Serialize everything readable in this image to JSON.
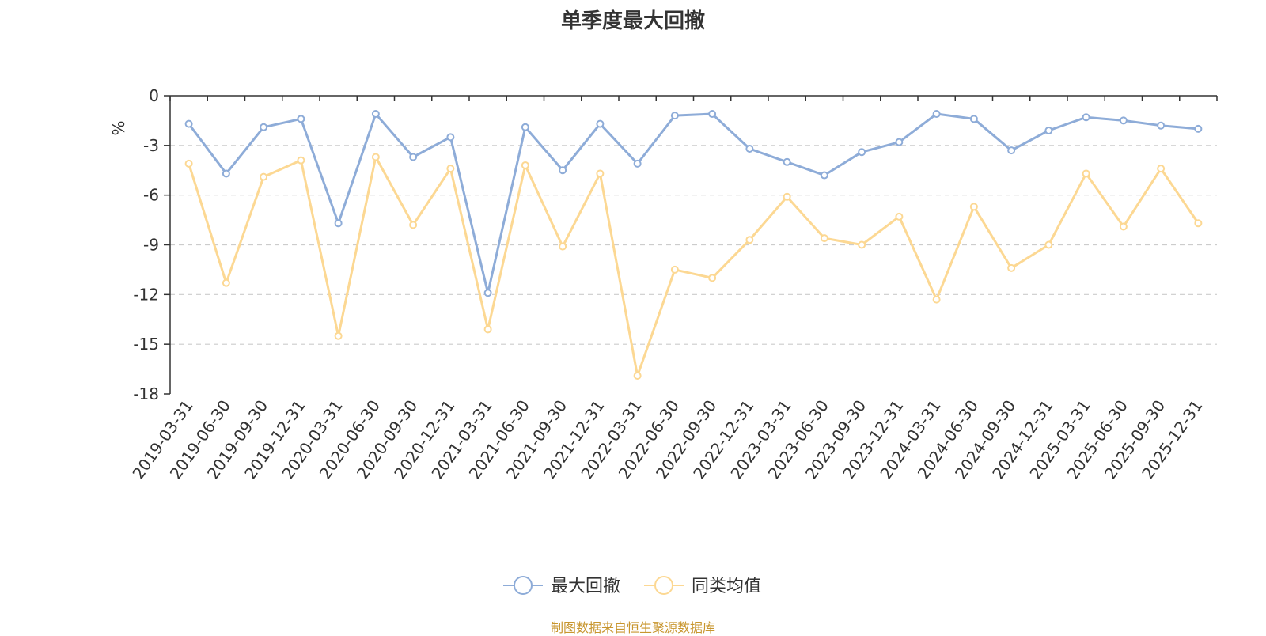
{
  "chart_data": {
    "type": "line",
    "title": "单季度最大回撤",
    "ylabel": "%",
    "ylim": [
      -18,
      0
    ],
    "yticks": [
      0,
      -3,
      -6,
      -9,
      -12,
      -15,
      -18
    ],
    "grid": true,
    "legend_position": "bottom-center",
    "categories": [
      "2019-03-31",
      "2019-06-30",
      "2019-09-30",
      "2019-12-31",
      "2020-03-31",
      "2020-06-30",
      "2020-09-30",
      "2020-12-31",
      "2021-03-31",
      "2021-06-30",
      "2021-09-30",
      "2021-12-31",
      "2022-03-31",
      "2022-06-30",
      "2022-09-30",
      "2022-12-31",
      "2023-03-31",
      "2023-06-30",
      "2023-09-30",
      "2023-12-31",
      "2024-03-31",
      "2024-06-30",
      "2024-09-30",
      "2024-12-31",
      "2025-03-31",
      "2025-06-30",
      "2025-09-30",
      "2025-12-31"
    ],
    "series": [
      {
        "name": "最大回撤",
        "color": "#8eacd8",
        "values": [
          -1.7,
          -4.7,
          -1.9,
          -1.4,
          -7.7,
          -1.1,
          -3.7,
          -2.5,
          -11.9,
          -1.9,
          -4.5,
          -1.7,
          -4.1,
          -1.2,
          -1.1,
          -3.2,
          -4.0,
          -4.8,
          -3.4,
          -2.8,
          -1.1,
          -1.4,
          -3.3,
          -2.1,
          -1.3,
          -1.5,
          -1.8,
          -2.0
        ]
      },
      {
        "name": "同类均值",
        "color": "#fcd893",
        "values": [
          -4.1,
          -11.3,
          -4.9,
          -3.9,
          -14.5,
          -3.7,
          -7.8,
          -4.4,
          -14.1,
          -4.2,
          -9.1,
          -4.7,
          -16.9,
          -10.5,
          -11.0,
          -8.7,
          -6.1,
          -8.6,
          -9.0,
          -7.3,
          -12.3,
          -6.7,
          -10.4,
          -9.0,
          -4.7,
          -7.9,
          -4.4,
          -7.7
        ]
      }
    ],
    "y_unit_color": "#e8262a"
  },
  "footer": {
    "source": "制图数据来自恒生聚源数据库"
  }
}
